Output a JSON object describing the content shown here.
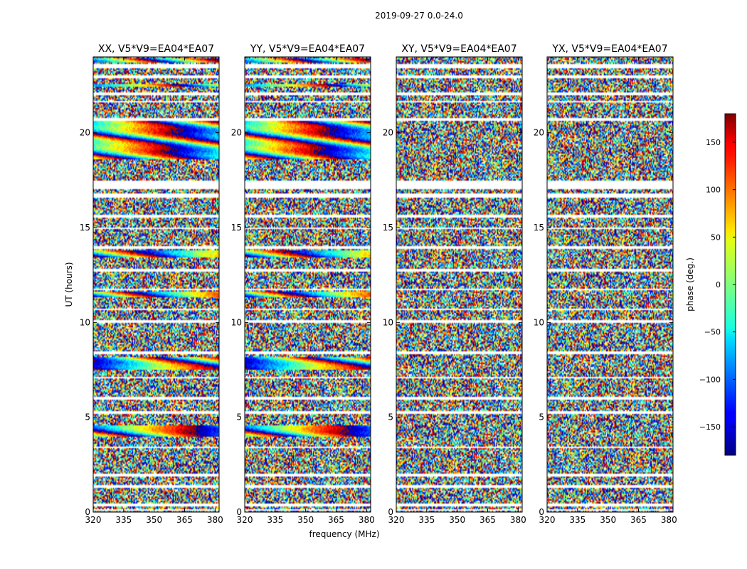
{
  "chart_data": {
    "type": "heatmap",
    "suptitle": "2019-09-27 0.0-24.0",
    "xlabel": "frequency (MHz)",
    "ylabel": "UT (hours)",
    "xlim": [
      320,
      382
    ],
    "ylim": [
      0,
      24
    ],
    "x_ticks": [
      320,
      335,
      350,
      365,
      380
    ],
    "y_ticks": [
      0,
      5,
      10,
      15,
      20
    ],
    "colorbar": {
      "label": "phase (deg.)",
      "range": [
        -180,
        180
      ],
      "ticks": [
        150,
        100,
        50,
        0,
        -50,
        -100,
        -150
      ],
      "tick_labels": [
        "150",
        "100",
        "50",
        "0",
        "−50",
        "−100",
        "−150"
      ],
      "colormap": "jet"
    },
    "panels": [
      {
        "title": "XX, V5*V9=EA04*EA07",
        "polarization": "XX",
        "baseline": "V5*V9=EA04*EA07"
      },
      {
        "title": "YY, V5*V9=EA04*EA07",
        "polarization": "YY",
        "baseline": "V5*V9=EA04*EA07"
      },
      {
        "title": "XY, V5*V9=EA04*EA07",
        "polarization": "XY",
        "baseline": "V5*V9=EA04*EA07"
      },
      {
        "title": "YX, V5*V9=EA04*EA07",
        "polarization": "YX",
        "baseline": "V5*V9=EA04*EA07"
      }
    ],
    "flagged_ut_bands": [
      [
        0.05,
        0.15
      ],
      [
        0.3,
        0.45
      ],
      [
        1.3,
        1.4
      ],
      [
        1.9,
        2.05
      ],
      [
        3.35,
        3.45
      ],
      [
        5.2,
        5.35
      ],
      [
        5.95,
        6.05
      ],
      [
        7.05,
        7.15
      ],
      [
        8.35,
        8.45
      ],
      [
        9.95,
        10.1
      ],
      [
        10.65,
        10.75
      ],
      [
        11.7,
        11.8
      ],
      [
        12.7,
        12.85
      ],
      [
        13.85,
        14.0
      ],
      [
        14.9,
        15.0
      ],
      [
        15.55,
        15.7
      ],
      [
        16.6,
        16.8
      ],
      [
        17.0,
        17.5
      ],
      [
        20.6,
        20.75
      ],
      [
        21.6,
        21.7
      ],
      [
        22.0,
        22.1
      ],
      [
        22.9,
        23.0
      ],
      [
        23.4,
        23.6
      ]
    ],
    "coherent_ut_bands": [
      [
        4.0,
        4.6
      ],
      [
        7.5,
        8.2
      ],
      [
        11.3,
        11.6
      ],
      [
        13.4,
        13.8
      ],
      [
        18.6,
        20.6
      ],
      [
        22.4,
        22.6
      ],
      [
        23.7,
        23.9
      ]
    ]
  }
}
